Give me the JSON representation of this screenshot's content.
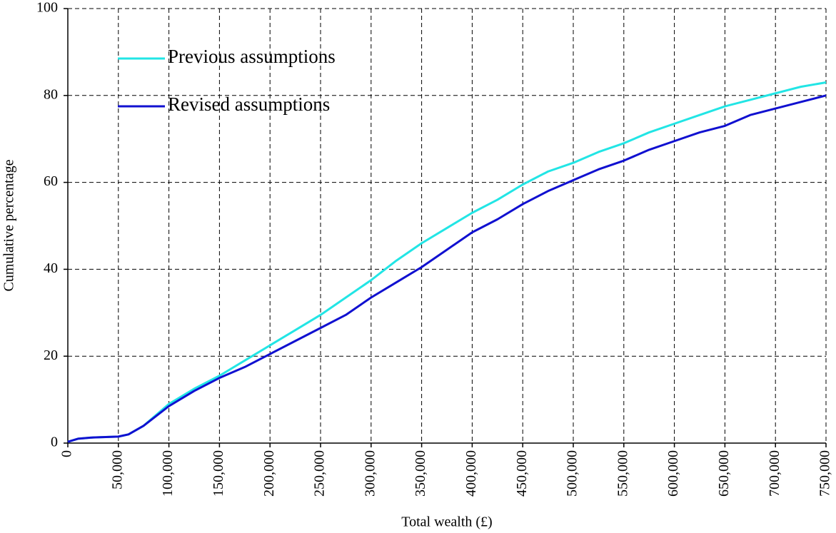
{
  "chart_data": {
    "type": "line",
    "xlabel": "Total wealth (£)",
    "ylabel": "Cumulative percentage",
    "x": [
      0,
      10000,
      25000,
      50000,
      60000,
      75000,
      100000,
      125000,
      150000,
      175000,
      200000,
      225000,
      250000,
      275000,
      300000,
      325000,
      350000,
      375000,
      400000,
      425000,
      450000,
      475000,
      500000,
      525000,
      550000,
      575000,
      600000,
      625000,
      650000,
      675000,
      700000,
      725000,
      750000
    ],
    "series": [
      {
        "name": "Previous assumptions",
        "color": "#22e5e5",
        "values": [
          0.3,
          1,
          1.3,
          1.5,
          2,
          4,
          9,
          12.5,
          15.5,
          19,
          22.5,
          26,
          29.5,
          33.5,
          37.5,
          42,
          46,
          49.5,
          53,
          56,
          59.5,
          62.5,
          64.5,
          67,
          69,
          71.5,
          73.5,
          75.5,
          77.5,
          79,
          80.5,
          82,
          83
        ]
      },
      {
        "name": "Revised assumptions",
        "color": "#1010d0",
        "values": [
          0.3,
          1,
          1.3,
          1.5,
          2,
          4,
          8.5,
          12,
          15,
          17.5,
          20.5,
          23.5,
          26.5,
          29.5,
          33.5,
          37,
          40.5,
          44.5,
          48.5,
          51.5,
          55,
          58,
          60.5,
          63,
          65,
          67.5,
          69.5,
          71.5,
          73,
          75.5,
          77,
          78.5,
          80
        ]
      }
    ],
    "xlim": [
      0,
      750000
    ],
    "xticks": [
      0,
      {
        "value": 50000,
        "label": "50,000"
      },
      {
        "value": 100000,
        "label": "100,000"
      },
      {
        "value": 150000,
        "label": "150,000"
      },
      {
        "value": 200000,
        "label": "200,000"
      },
      {
        "value": 250000,
        "label": "250,000"
      },
      {
        "value": 300000,
        "label": "300,000"
      },
      {
        "value": 350000,
        "label": "350,000"
      },
      {
        "value": 400000,
        "label": "400,000"
      },
      {
        "value": 450000,
        "label": "450,000"
      },
      {
        "value": 500000,
        "label": "500,000"
      },
      {
        "value": 550000,
        "label": "550,000"
      },
      {
        "value": 600000,
        "label": "600,000"
      },
      {
        "value": 650000,
        "label": "650,000"
      },
      {
        "value": 700000,
        "label": "700,000"
      },
      {
        "value": 750000,
        "label": "750,000"
      }
    ],
    "ylim": [
      0,
      100
    ],
    "yticks": [
      0,
      20,
      40,
      60,
      80,
      100
    ],
    "grid": true,
    "legend": "upper left"
  }
}
